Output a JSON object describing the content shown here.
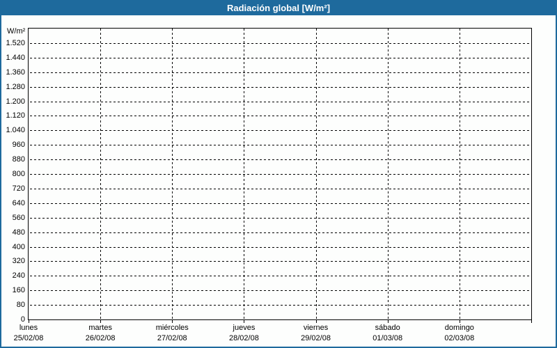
{
  "colors": {
    "accent_blue": "#1e6a9d",
    "grid_line": "#000000",
    "plot_background": "#fdfefd",
    "title_text": "#ffffff"
  },
  "chart_data": {
    "type": "line",
    "title": "Radiación global [W/m²]",
    "ylabel": "W/m²",
    "xlabel": "",
    "ylim": [
      0,
      1600
    ],
    "ytick_step": 80,
    "grid": "dashed",
    "legend": "none",
    "series": [],
    "yticks": [
      {
        "value": 0,
        "label": "0"
      },
      {
        "value": 80,
        "label": "80"
      },
      {
        "value": 160,
        "label": "160"
      },
      {
        "value": 240,
        "label": "240"
      },
      {
        "value": 320,
        "label": "320"
      },
      {
        "value": 400,
        "label": "400"
      },
      {
        "value": 480,
        "label": "480"
      },
      {
        "value": 560,
        "label": "560"
      },
      {
        "value": 640,
        "label": "640"
      },
      {
        "value": 720,
        "label": "720"
      },
      {
        "value": 800,
        "label": "800"
      },
      {
        "value": 880,
        "label": "880"
      },
      {
        "value": 960,
        "label": "960"
      },
      {
        "value": 1040,
        "label": "1.040"
      },
      {
        "value": 1120,
        "label": "1.120"
      },
      {
        "value": 1200,
        "label": "1.200"
      },
      {
        "value": 1280,
        "label": "1.280"
      },
      {
        "value": 1360,
        "label": "1.360"
      },
      {
        "value": 1440,
        "label": "1.440"
      },
      {
        "value": 1520,
        "label": "1.520"
      }
    ],
    "x_categories": [
      {
        "day": "lunes",
        "date": "25/02/08"
      },
      {
        "day": "martes",
        "date": "26/02/08"
      },
      {
        "day": "miércoles",
        "date": "27/02/08"
      },
      {
        "day": "jueves",
        "date": "28/02/08"
      },
      {
        "day": "viernes",
        "date": "29/02/08"
      },
      {
        "day": "sábado",
        "date": "01/03/08"
      },
      {
        "day": "domingo",
        "date": "02/03/08"
      }
    ]
  }
}
